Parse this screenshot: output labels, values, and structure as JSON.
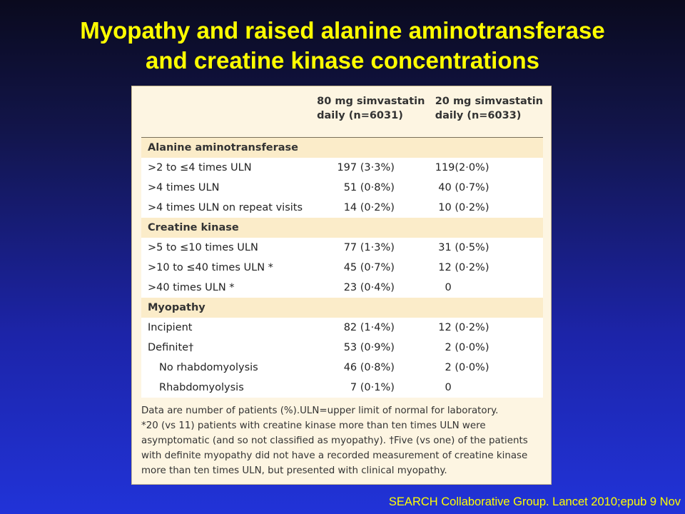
{
  "title": {
    "line1": "Myopathy and raised alanine aminotransferase",
    "line2": "and creatine kinase concentrations"
  },
  "table": {
    "headers": {
      "col2_line1": "80 mg simvastatin",
      "col2_line2": "daily (n=6031)",
      "col3_line1": "20 mg simvastatin",
      "col3_line2": "daily (n=6033)"
    },
    "sections": [
      {
        "label": "Alanine aminotransferase",
        "rows": [
          {
            "label": ">2  to ≤4 times ULN",
            "n80": "197",
            "p80": "(3·3%)",
            "n20": "119",
            "p20": "(2·0%)"
          },
          {
            "label": ">4 times ULN",
            "n80": "51",
            "p80": "(0·8%)",
            "n20": "40",
            "p20": "(0·7%)"
          },
          {
            "label": ">4 times ULN on repeat visits",
            "n80": "14",
            "p80": "(0·2%)",
            "n20": "10",
            "p20": "(0·2%)"
          }
        ]
      },
      {
        "label": "Creatine kinase",
        "rows": [
          {
            "label": ">5 to ≤10 times ULN",
            "n80": "77",
            "p80": "(1·3%)",
            "n20": "31",
            "p20": "(0·5%)"
          },
          {
            "label": ">10 to ≤40 times ULN *",
            "n80": "45",
            "p80": "(0·7%)",
            "n20": "12",
            "p20": "(0·2%)"
          },
          {
            "label": ">40 times ULN *",
            "n80": "23",
            "p80": "(0·4%)",
            "n20": "0",
            "p20": ""
          }
        ]
      },
      {
        "label": "Myopathy",
        "rows": [
          {
            "label": "Incipient",
            "n80": "82",
            "p80": "(1·4%)",
            "n20": "12",
            "p20": "(0·2%)"
          },
          {
            "label": "Definite†",
            "n80": "53",
            "p80": "(0·9%)",
            "n20": "2",
            "p20": "(0·0%)"
          },
          {
            "label": "No rhabdomyolysis",
            "n80": "46",
            "p80": "(0·8%)",
            "n20": "2",
            "p20": "(0·0%)"
          },
          {
            "label": "Rhabdomyolysis",
            "n80": "7",
            "p80": "(0·1%)",
            "n20": "0",
            "p20": ""
          }
        ]
      }
    ]
  },
  "footnote": {
    "line1": "Data are number of patients (%).ULN=upper limit of normal for laboratory.",
    "line2": "*20 (vs 11) patients with creatine kinase more than ten times ULN were",
    "line3": "asymptomatic (and so not classified as myopathy). †Five (vs one) of the patients",
    "line4": "with definite myopathy did not have a recorded measurement of creatine kinase",
    "line5": "more than ten times ULN, but presented with clinical myopathy."
  },
  "citation": "SEARCH Collaborative Group. Lancet 2010;epub 9 Nov",
  "colors": {
    "title": "#ffff00",
    "panel_bg": "#fdf5e2",
    "section_bg": "#fbecc9",
    "row_bg": "#ffffff",
    "background_top": "#0a0a1e",
    "background_bottom": "#2133d8"
  }
}
